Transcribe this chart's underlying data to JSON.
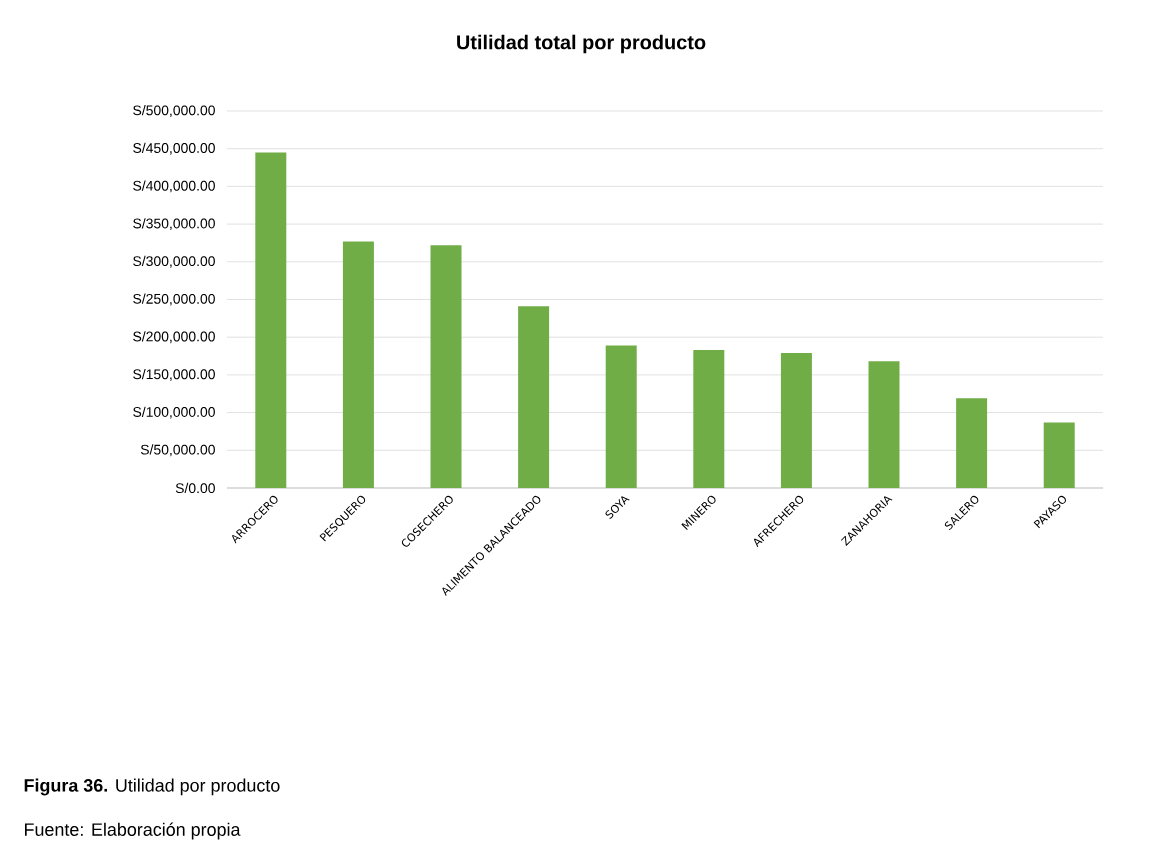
{
  "chart_data": {
    "type": "bar",
    "title": "Utilidad total por producto",
    "categories": [
      "ARROCERO",
      "PESQUERO",
      "COSECHERO",
      "ALIMENTO BALANCEADO",
      "SOYA",
      "MINERO",
      "AFRECHERO",
      "ZANAHORIA",
      "SALERO",
      "PAYASO"
    ],
    "values": [
      445000,
      327000,
      322000,
      241000,
      189000,
      183000,
      179000,
      168000,
      119000,
      87000
    ],
    "color": "#70ad47",
    "ylim": [
      0,
      500000
    ],
    "yticks": [
      {
        "value": 0,
        "label": "S/0.00"
      },
      {
        "value": 50000,
        "label": "S/50,000.00"
      },
      {
        "value": 100000,
        "label": "S/100,000.00"
      },
      {
        "value": 150000,
        "label": "S/150,000.00"
      },
      {
        "value": 200000,
        "label": "S/200,000.00"
      },
      {
        "value": 250000,
        "label": "S/250,000.00"
      },
      {
        "value": 300000,
        "label": "S/300,000.00"
      },
      {
        "value": 350000,
        "label": "S/350,000.00"
      },
      {
        "value": 400000,
        "label": "S/400,000.00"
      },
      {
        "value": 450000,
        "label": "S/450,000.00"
      },
      {
        "value": 500000,
        "label": "S/500,000.00"
      }
    ],
    "grid": "y",
    "annotations": [
      "**Figura 36.** Utilidad por producto",
      "Fuente: Elaboración propia"
    ]
  }
}
